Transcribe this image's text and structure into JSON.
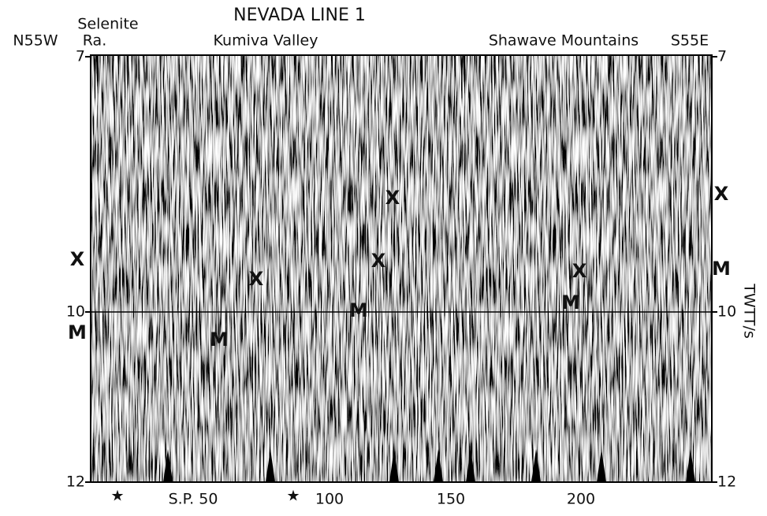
{
  "header": {
    "title": "NEVADA LINE 1",
    "left_direction": "N55W",
    "right_direction": "S55E",
    "locations": [
      "Selenite",
      "Ra.",
      "Kumiva Valley",
      "Shawave Mountains"
    ]
  },
  "left_axis": {
    "ticks": [
      "7",
      "10",
      "12"
    ]
  },
  "right_axis": {
    "ticks": [
      "7",
      "10",
      "12"
    ],
    "label": "TWTT/s"
  },
  "bottom_axis": {
    "labels": [
      "S.P. 50",
      "100",
      "150",
      "200"
    ],
    "markers": [
      "★",
      "★"
    ]
  },
  "annotations": [
    "X",
    "M",
    "X",
    "M",
    "X",
    "X",
    "M",
    "X",
    "M",
    "X",
    "M"
  ]
}
